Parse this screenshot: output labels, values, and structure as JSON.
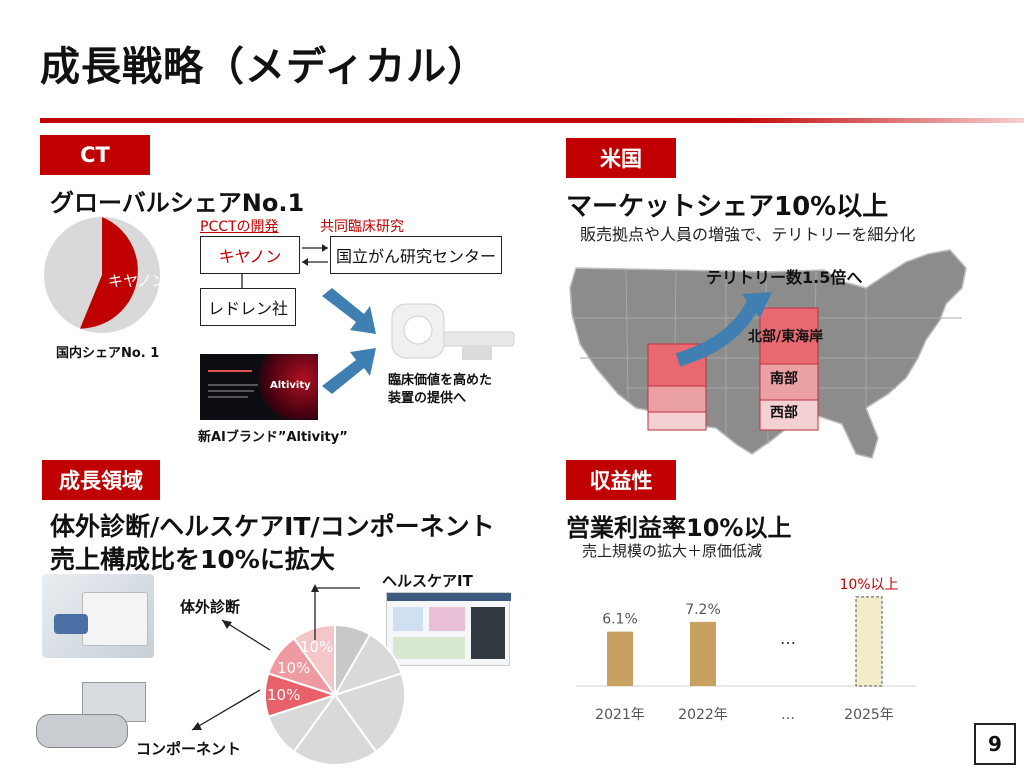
{
  "title": "成長戦略（メディカル）",
  "page_number": "9",
  "colors": {
    "accent": "#c00000",
    "bar": "#c8a060",
    "bar_target": "#f3ecc8"
  },
  "ct": {
    "tag": "CT",
    "headline": "グローバルシェアNo.1",
    "pie": {
      "highlight_label": "キヤノン",
      "caption": "国内シェアNo. 1"
    },
    "pcct_label": "PCCTの開発",
    "joint_label": "共同臨床研究",
    "box_canon": "キヤノン",
    "box_ncc": "国立がん研究センター",
    "box_redlen": "レドレン社",
    "clinical_text": [
      "臨床価値を高めた",
      "装置の提供へ"
    ],
    "brand_caption": "新AIブランド”Altivity”",
    "brand_logo_text": "Altivity"
  },
  "us": {
    "tag": "米国",
    "headline": "マーケットシェア10%以上",
    "subline": "販売拠点や人員の増強で、テリトリーを細分化",
    "arrow_label": "テリトリー数1.5倍へ",
    "regions": [
      "北部/東海岸",
      "南部",
      "西部"
    ]
  },
  "growth": {
    "tag": "成長領域",
    "headline_line1": "体外診断/ヘルスケアIT/コンポーネント",
    "headline_line2": "売上構成比を10%に拡大",
    "labels": {
      "ivd": "体外診断",
      "hit": "ヘルスケアIT",
      "comp": "コンポーネント"
    },
    "pie_labels": [
      "10%",
      "10%",
      "10%"
    ]
  },
  "profit": {
    "tag": "収益性",
    "headline": "営業利益率10%以上",
    "subline": "売上規模の拡大＋原価低減",
    "ellipsis": "…",
    "target_label": "10%以上"
  },
  "chart_data": {
    "type": "bar",
    "categories": [
      "2021年",
      "2022年",
      "…",
      "2025年"
    ],
    "values": [
      6.1,
      7.2,
      null,
      10
    ],
    "data_labels": [
      "6.1%",
      "7.2%",
      "…",
      "10%以上"
    ],
    "ylim": [
      0,
      11
    ]
  }
}
